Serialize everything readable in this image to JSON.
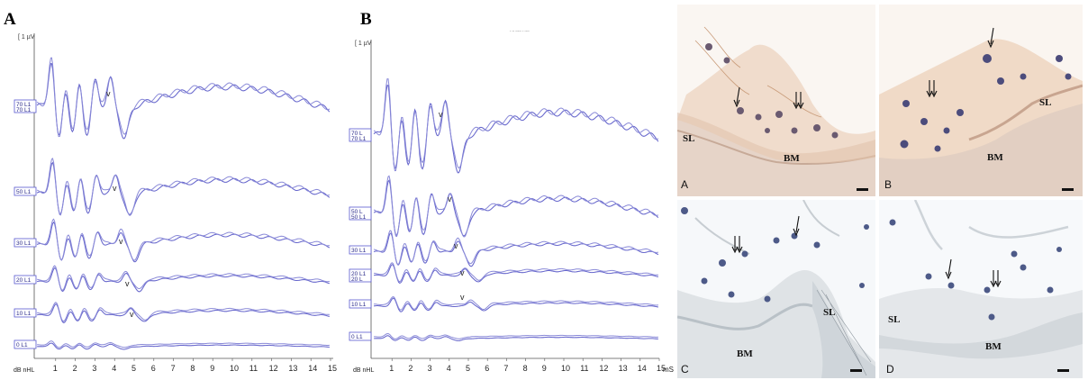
{
  "figure": {
    "panel_a_label": "A",
    "panel_b_label": "B",
    "scale_label": "[ 1 µV",
    "x_axis_unit_left": "dB nHL",
    "x_axis_unit_right": "mS",
    "tiny_header_b": "- -- ----- - ----",
    "x_ticks": [
      "1",
      "2",
      "3",
      "4",
      "5",
      "6",
      "7",
      "8",
      "9",
      "10",
      "11",
      "12",
      "13",
      "14",
      "15"
    ],
    "wave_marker": "v"
  },
  "panel_a": {
    "levels": [
      {
        "label": "70 L1",
        "sub": "70 L1"
      },
      {
        "label": "50 L1",
        "sub": ""
      },
      {
        "label": "30 L1",
        "sub": ""
      },
      {
        "label": "20 L1",
        "sub": ""
      },
      {
        "label": "10 L1",
        "sub": ""
      },
      {
        "label": "0 L1",
        "sub": ""
      }
    ]
  },
  "panel_b": {
    "levels": [
      {
        "label": "70 L",
        "sub": "70 L1"
      },
      {
        "label": "50 L",
        "sub": "50 L1"
      },
      {
        "label": "30 L1",
        "sub": ""
      },
      {
        "label": "20 L1",
        "sub": "20 L"
      },
      {
        "label": "10 L1",
        "sub": ""
      },
      {
        "label": "0 L1",
        "sub": ""
      }
    ]
  },
  "micrographs": {
    "a": {
      "panel": "A",
      "labels": [
        "SL",
        "BM"
      ]
    },
    "b": {
      "panel": "B",
      "labels": [
        "SL",
        "BM"
      ]
    },
    "c": {
      "panel": "C",
      "labels": [
        "SL",
        "BM"
      ]
    },
    "d": {
      "panel": "D",
      "labels": [
        "SL",
        "BM"
      ]
    }
  },
  "colors": {
    "trace": "#6666cc",
    "box_border": "#5a5ad0",
    "tissue_pink": "#e8d8d0",
    "tissue_blue": "#dfe5ea",
    "nucleus": "#4a4a8a"
  }
}
